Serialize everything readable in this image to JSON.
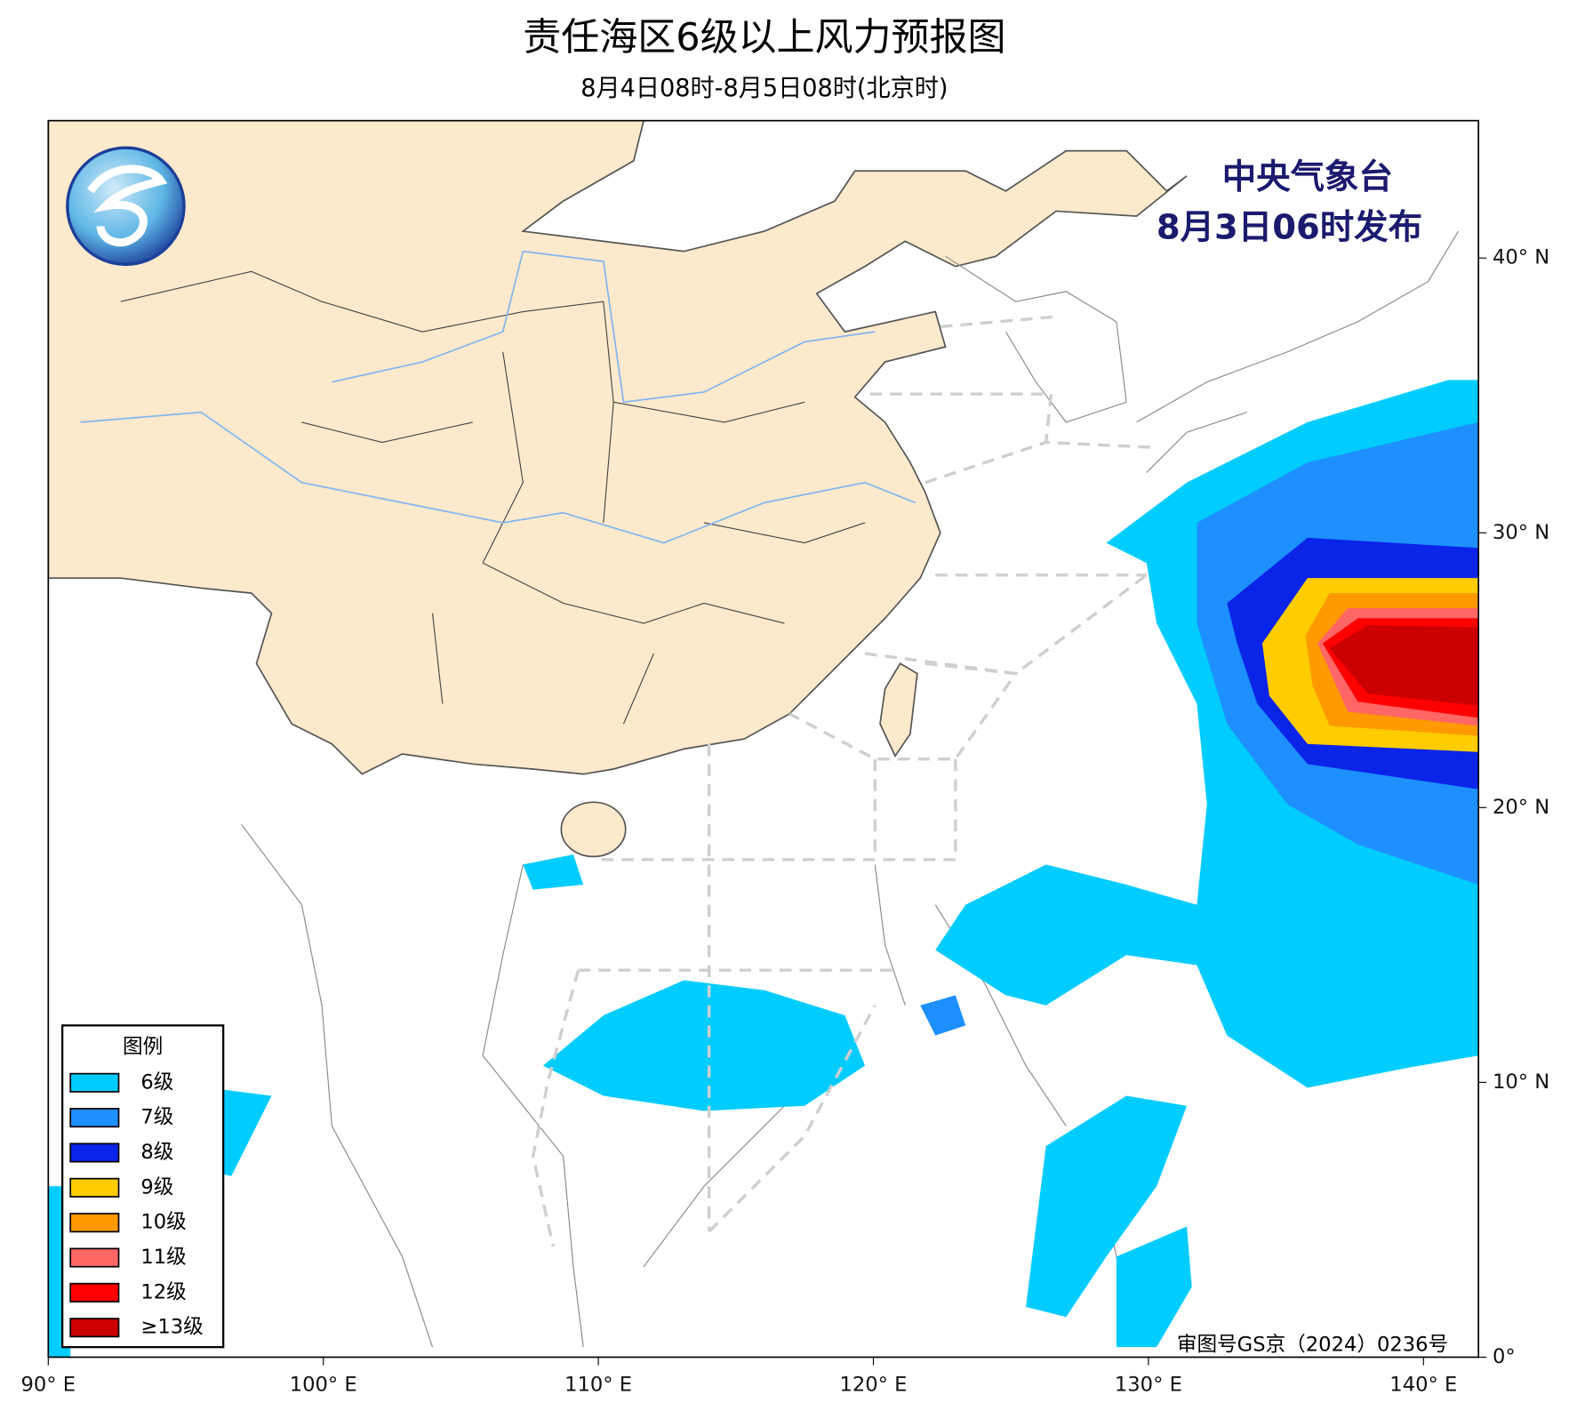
{
  "title": "责任海区6级以上风力预报图",
  "subtitle": "8月4日08时-8月5日08时(北京时)",
  "publisher": [
    "中央气象台",
    "8月3日06时发布"
  ],
  "approval": "审图号GS京（2024）0236号",
  "map": {
    "xlim": [
      90,
      142
    ],
    "ylim": [
      0,
      45
    ],
    "xticks": [
      {
        "value": 90,
        "label": "90° E"
      },
      {
        "value": 100,
        "label": "100° E"
      },
      {
        "value": 110,
        "label": "110° E"
      },
      {
        "value": 120,
        "label": "120° E"
      },
      {
        "value": 130,
        "label": "130° E"
      },
      {
        "value": 140,
        "label": "140° E"
      }
    ],
    "yticks": [
      {
        "value": 0,
        "label": "0°"
      },
      {
        "value": 10,
        "label": "10° N"
      },
      {
        "value": 20,
        "label": "20° N"
      },
      {
        "value": 30,
        "label": "30° N"
      },
      {
        "value": 40,
        "label": "40° N"
      }
    ]
  },
  "legend": {
    "title": "图例",
    "items": [
      {
        "label": "6级",
        "color": "#00ccff"
      },
      {
        "label": "7级",
        "color": "#1e8fff"
      },
      {
        "label": "8级",
        "color": "#0a24e8"
      },
      {
        "label": "9级",
        "color": "#ffcc00"
      },
      {
        "label": "10级",
        "color": "#ff9900"
      },
      {
        "label": "11级",
        "color": "#ff6666"
      },
      {
        "label": "12级",
        "color": "#ff0000"
      },
      {
        "label": "≥13级",
        "color": "#cc0000"
      }
    ]
  }
}
